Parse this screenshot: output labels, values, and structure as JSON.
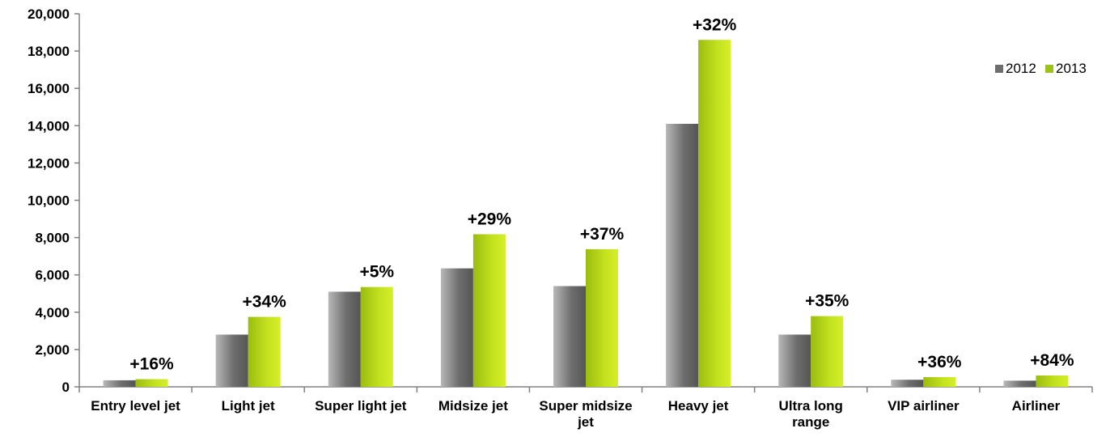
{
  "chart_data": {
    "type": "bar",
    "title": "",
    "xlabel": "",
    "ylabel": "",
    "ylim": [
      0,
      20000
    ],
    "yticks": [
      0,
      2000,
      4000,
      6000,
      8000,
      10000,
      12000,
      14000,
      16000,
      18000,
      20000
    ],
    "ytick_labels": [
      "0",
      "2,000",
      "4,000",
      "6,000",
      "8,000",
      "10,000",
      "12,000",
      "14,000",
      "16,000",
      "18,000",
      "20,000"
    ],
    "grid": false,
    "legend_position": "top-right",
    "categories": [
      [
        "Entry level jet"
      ],
      [
        "Light jet"
      ],
      [
        "Super light jet"
      ],
      [
        "Midsize jet"
      ],
      [
        "Super midsize",
        "jet"
      ],
      [
        "Heavy jet"
      ],
      [
        "Ultra long",
        "range"
      ],
      [
        "VIP airliner"
      ],
      [
        "Airliner"
      ]
    ],
    "series": [
      {
        "name": "2012",
        "color": "#6e6e6e",
        "values": [
          350,
          2800,
          5100,
          6350,
          5400,
          14100,
          2800,
          380,
          330
        ]
      },
      {
        "name": "2013",
        "color": "#9bc31c",
        "values": [
          410,
          3750,
          5350,
          8180,
          7380,
          18600,
          3790,
          520,
          610
        ]
      }
    ],
    "annotations": [
      "+16%",
      "+34%",
      "+5%",
      "+29%",
      "+37%",
      "+32%",
      "+35%",
      "+36%",
      "+84%"
    ]
  }
}
